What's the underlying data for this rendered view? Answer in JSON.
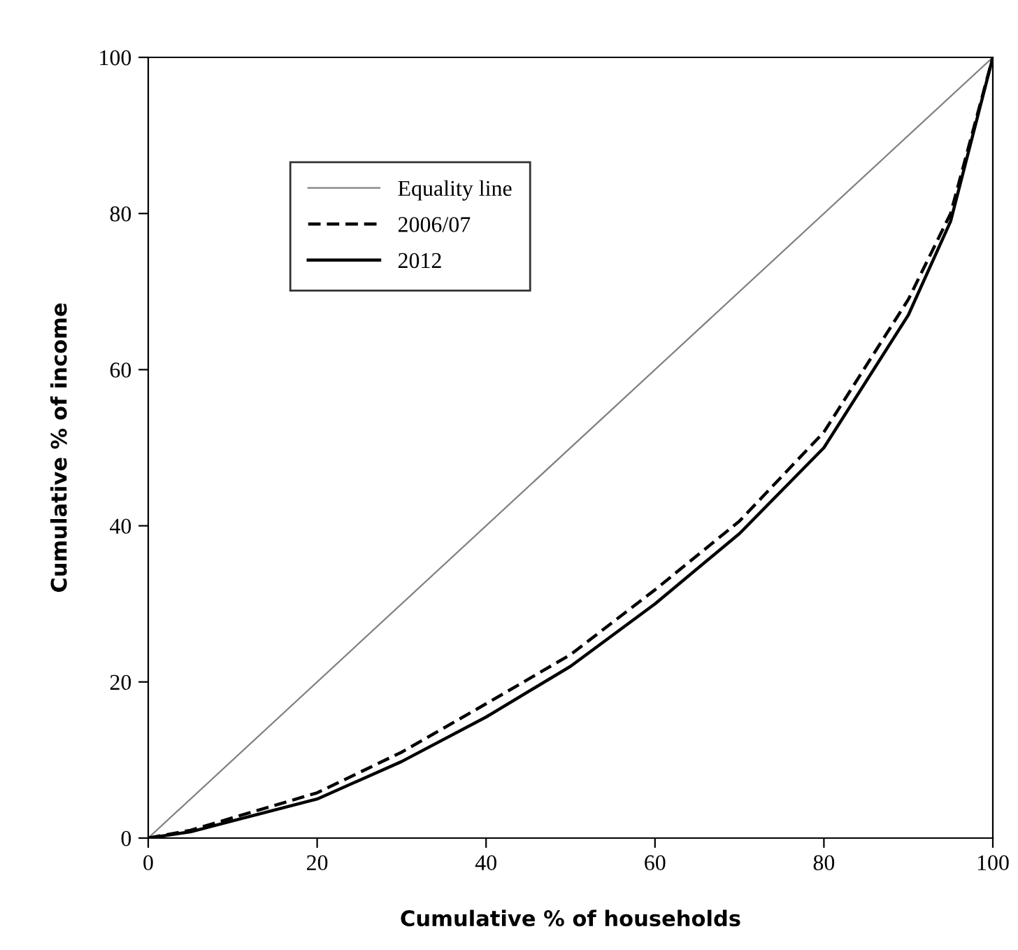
{
  "chart_data": {
    "type": "line",
    "xlabel": "Cumulative % of households",
    "ylabel": "Cumulative % of income",
    "xlim": [
      0,
      100
    ],
    "ylim": [
      0,
      100
    ],
    "xticks": [
      0,
      20,
      40,
      60,
      80,
      100
    ],
    "yticks": [
      0,
      20,
      40,
      60,
      80,
      100
    ],
    "grid": false,
    "legend": "top left",
    "marker": "none",
    "series": [
      {
        "name": "Equality line",
        "color": "#808080",
        "x": [
          0,
          100
        ],
        "values": [
          0,
          100
        ],
        "line_style": "solid"
      },
      {
        "name": "2006/07",
        "color": "#000000",
        "x": [
          0,
          5,
          10,
          20,
          30,
          40,
          50,
          60,
          70,
          80,
          90,
          95,
          100
        ],
        "values": [
          0,
          1,
          2.6,
          5.8,
          11,
          17.2,
          23.5,
          31.8,
          40.6,
          52,
          69,
          80,
          100
        ],
        "line_style": "dashed"
      },
      {
        "name": "2012",
        "color": "#000000",
        "x": [
          0,
          5,
          10,
          20,
          30,
          40,
          50,
          60,
          70,
          80,
          90,
          95,
          100
        ],
        "values": [
          0,
          0.8,
          2.2,
          5,
          9.8,
          15.5,
          22,
          30,
          39,
          50,
          67,
          79,
          100
        ],
        "line_style": "solid"
      }
    ]
  }
}
